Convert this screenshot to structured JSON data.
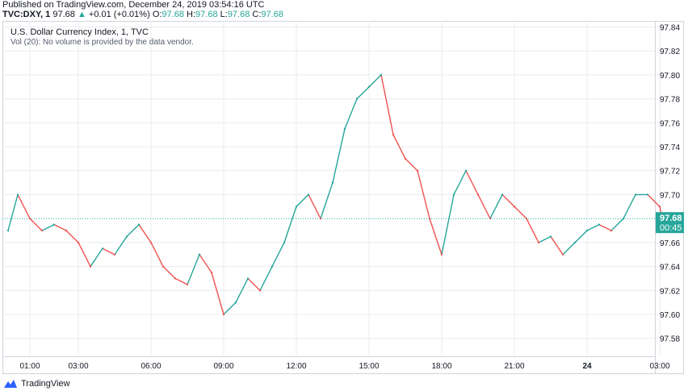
{
  "header": {
    "published": "Published on TradingView.com, December 24, 2019 03:54:16 UTC",
    "symbol": "TVC:DXY, 1",
    "last": "97.68",
    "change_arrow": "▲",
    "change": "+0.01 (+0.01%)",
    "o_label": "O:",
    "o_val": "97.68",
    "h_label": "H:",
    "h_val": "97.68",
    "l_label": "L:",
    "l_val": "97.68",
    "c_label": "C:",
    "c_val": "97.68"
  },
  "legend": {
    "title": "U.S. Dollar Currency Index, 1, TVC",
    "volume_note": "Vol (20): No volume is provided by the data vendor."
  },
  "price_tag": {
    "price": "97.68",
    "countdown": "00:45"
  },
  "footer": {
    "brand": "TradingView"
  },
  "colors": {
    "up": "#26a69a",
    "down": "#ef5350",
    "tag": "#26a69a",
    "grid": "#e9ecf0"
  },
  "chart_data": {
    "type": "line",
    "title": "U.S. Dollar Currency Index, 1, TVC",
    "x_tick_labels": [
      "01:00",
      "03:00",
      "06:00",
      "09:00",
      "12:00",
      "15:00",
      "18:00",
      "21:00",
      "24",
      "03:00"
    ],
    "y_tick_labels": [
      "97.84",
      "97.82",
      "97.80",
      "97.78",
      "97.76",
      "97.74",
      "97.72",
      "97.70",
      "97.66",
      "97.64",
      "97.62",
      "97.60",
      "97.58"
    ],
    "ylim": [
      97.565,
      97.845
    ],
    "last_price": 97.68,
    "grid": true,
    "x_hours": [
      0.1,
      0.5,
      1.0,
      1.5,
      2.0,
      2.5,
      3.0,
      3.5,
      4.0,
      4.5,
      5.0,
      5.5,
      6.0,
      6.5,
      7.0,
      7.5,
      8.0,
      8.5,
      9.0,
      9.5,
      10.0,
      10.5,
      11.0,
      11.5,
      12.0,
      12.5,
      13.0,
      13.5,
      14.0,
      14.5,
      15.0,
      15.5,
      16.0,
      16.5,
      17.0,
      17.5,
      18.0,
      18.5,
      19.0,
      19.5,
      20.0,
      20.5,
      21.0,
      21.5,
      22.0,
      22.5,
      23.0,
      23.5,
      24.0,
      24.5,
      25.0,
      25.5,
      26.0,
      26.5,
      27.0,
      27.1
    ],
    "values": [
      97.67,
      97.7,
      97.68,
      97.67,
      97.675,
      97.67,
      97.66,
      97.64,
      97.655,
      97.65,
      97.665,
      97.675,
      97.66,
      97.64,
      97.63,
      97.625,
      97.65,
      97.635,
      97.6,
      97.61,
      97.63,
      97.62,
      97.64,
      97.66,
      97.69,
      97.7,
      97.68,
      97.71,
      97.755,
      97.78,
      97.79,
      97.8,
      97.75,
      97.73,
      97.72,
      97.68,
      97.65,
      97.7,
      97.72,
      97.7,
      97.68,
      97.7,
      97.69,
      97.68,
      97.66,
      97.665,
      97.65,
      97.66,
      97.67,
      97.675,
      97.67,
      97.68,
      97.7,
      97.7,
      97.69,
      97.68
    ]
  }
}
